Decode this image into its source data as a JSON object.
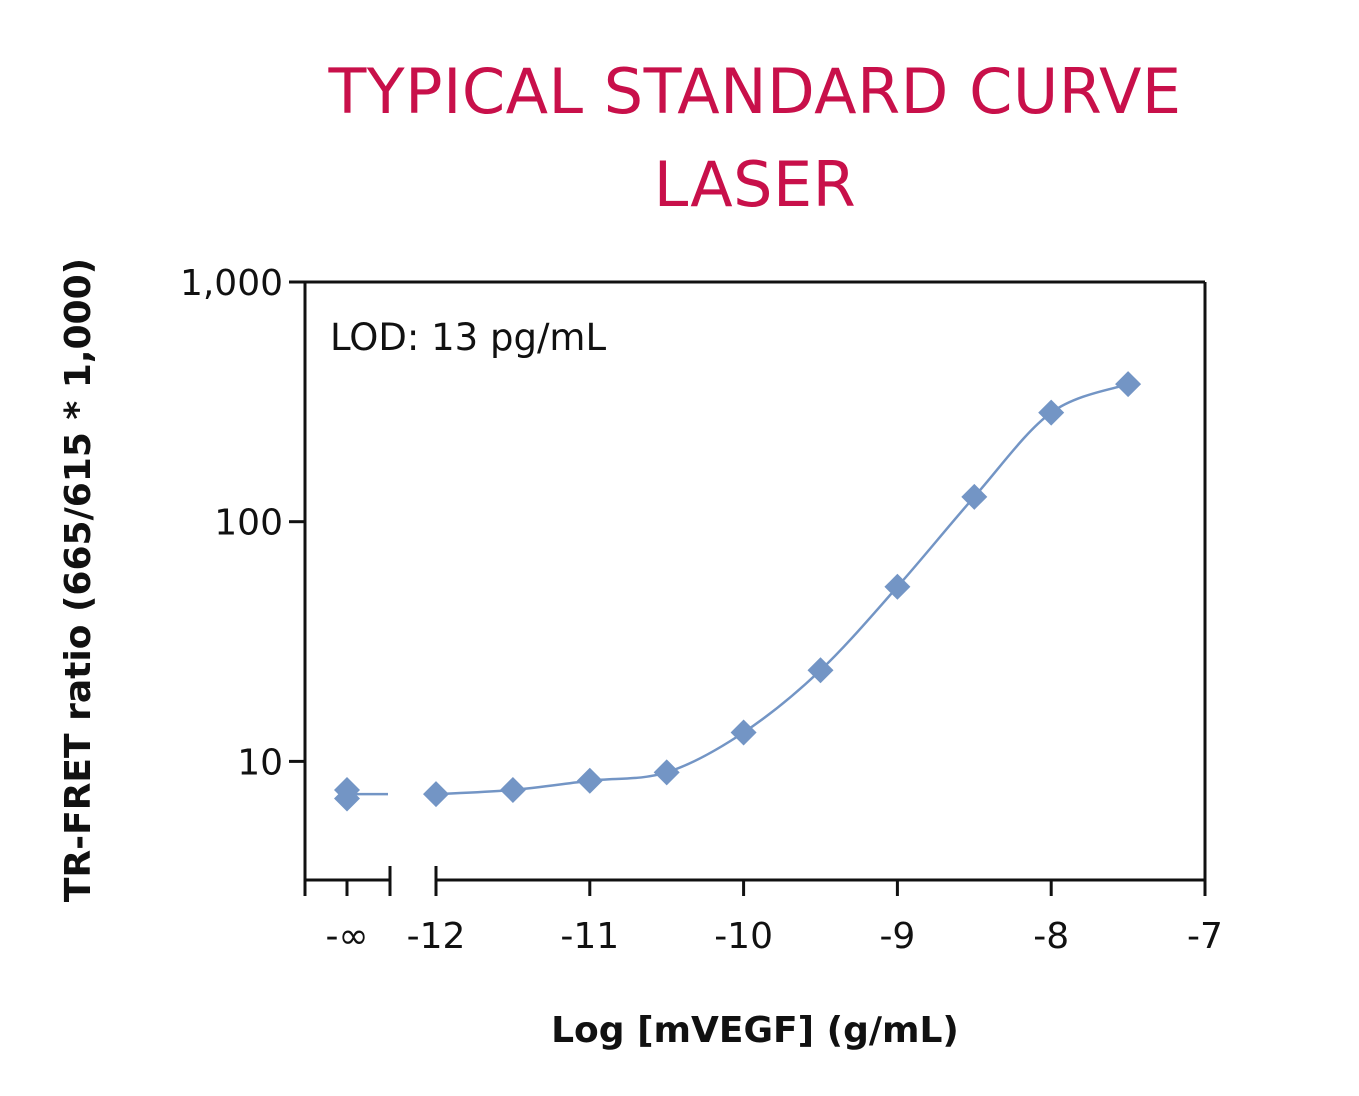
{
  "chart_data": {
    "type": "scatter",
    "title": "TYPICAL STANDARD CURVE",
    "subtitle": "LASER",
    "xlabel": "Log [mVEGF] (g/mL)",
    "ylabel": "TR-FRET ratio (665/615 * 1,000)",
    "annotation": "LOD: 13 pg/mL",
    "y_scale": "log",
    "ylim": [
      3.2,
      1000
    ],
    "xlim": [
      -12,
      -7
    ],
    "x_tick_labels": [
      "-∞",
      "-12",
      "-11",
      "-10",
      "-9",
      "-8",
      "-7"
    ],
    "y_tick_labels": [
      "1,000",
      "100",
      "10"
    ],
    "x_ticks": [
      -12,
      -11,
      -10,
      -9,
      -8,
      -7
    ],
    "y_ticks": [
      1000,
      100,
      10
    ],
    "grid": false,
    "series": [
      {
        "color": "#7395c5",
        "marker": "diamond",
        "zero_point": [
          7.6,
          7.0
        ],
        "x": [
          -12,
          -11.5,
          -11,
          -10.5,
          -10,
          -9.5,
          -9,
          -8.5,
          -8,
          -7.5
        ],
        "y": [
          7.3,
          7.6,
          8.3,
          9.0,
          13.2,
          24.0,
          53.5,
          127,
          285,
          375
        ]
      }
    ]
  }
}
